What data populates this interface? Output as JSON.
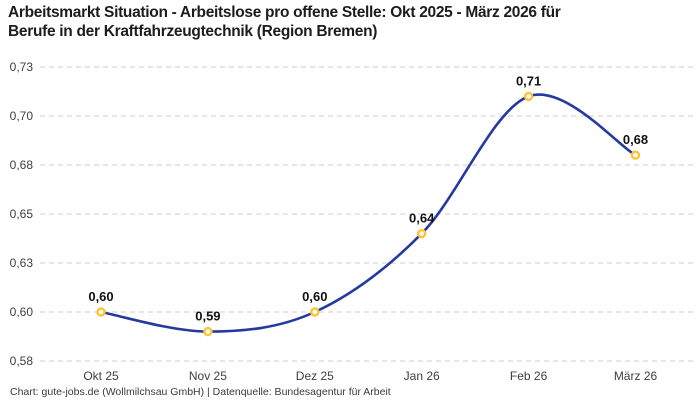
{
  "title": "Arbeitsmarkt Situation - Arbeitslose pro offene Stelle: Okt 2025 - März 2026 für\nBerufe in der Kraftfahrzeugtechnik (Region Bremen)",
  "footer": "Chart: gute-jobs.de (Wollmilchsau GmbH) | Datenquelle: Bundesagentur für Arbeit",
  "chart_data": {
    "type": "line",
    "title": "Arbeitsmarkt Situation - Arbeitslose pro offene Stelle: Okt 2025 - März 2026 für Berufe in der Kraftfahrzeugtechnik (Region Bremen)",
    "categories": [
      "Okt 25",
      "Nov 25",
      "Dez 25",
      "Jan 26",
      "Feb 26",
      "März 26"
    ],
    "values": [
      0.6,
      0.59,
      0.6,
      0.64,
      0.71,
      0.68
    ],
    "point_labels": [
      "0,60",
      "0,59",
      "0,60",
      "0,64",
      "0,71",
      "0,68"
    ],
    "xlabel": "",
    "ylabel": "",
    "ylim": [
      0.575,
      0.725
    ],
    "yticks": [
      0.575,
      0.6,
      0.625,
      0.65,
      0.675,
      0.7,
      0.725
    ],
    "ytick_labels": [
      "0,58",
      "0,60",
      "0,63",
      "0,65",
      "0,68",
      "0,70",
      "0,73"
    ],
    "grid": "horizontal-dashed",
    "legend": "none",
    "smooth": true,
    "colors": {
      "line": "#243a9f",
      "marker_ring": "#ffc433",
      "marker_fill": "#ffffff",
      "gridline": "#cccccc",
      "tick_text": "#3f3f3f",
      "data_label_text": "#111111"
    }
  }
}
